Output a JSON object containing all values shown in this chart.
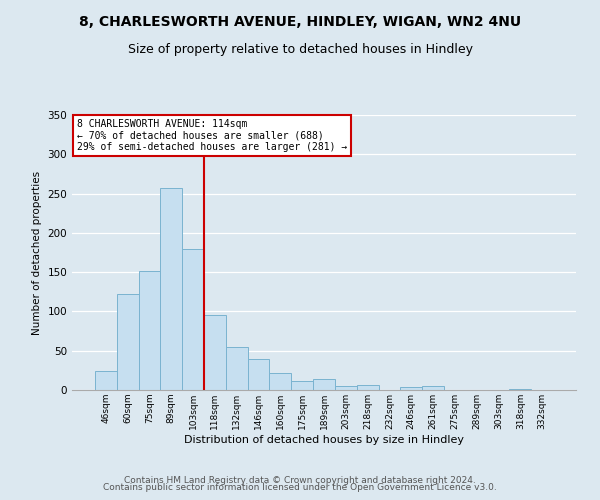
{
  "title": "8, CHARLESWORTH AVENUE, HINDLEY, WIGAN, WN2 4NU",
  "subtitle": "Size of property relative to detached houses in Hindley",
  "xlabel": "Distribution of detached houses by size in Hindley",
  "ylabel": "Number of detached properties",
  "bar_labels": [
    "46sqm",
    "60sqm",
    "75sqm",
    "89sqm",
    "103sqm",
    "118sqm",
    "132sqm",
    "146sqm",
    "160sqm",
    "175sqm",
    "189sqm",
    "203sqm",
    "218sqm",
    "232sqm",
    "246sqm",
    "261sqm",
    "275sqm",
    "289sqm",
    "303sqm",
    "318sqm",
    "332sqm"
  ],
  "bar_values": [
    24,
    122,
    152,
    257,
    180,
    95,
    55,
    40,
    22,
    12,
    14,
    5,
    6,
    0,
    4,
    5,
    0,
    0,
    0,
    1,
    0
  ],
  "bar_color": "#c6dff0",
  "bar_edge_color": "#7ab3d0",
  "vline_color": "#cc0000",
  "annotation_text": "8 CHARLESWORTH AVENUE: 114sqm\n← 70% of detached houses are smaller (688)\n29% of semi-detached houses are larger (281) →",
  "annotation_box_color": "#ffffff",
  "annotation_box_edge": "#cc0000",
  "ylim": [
    0,
    350
  ],
  "yticks": [
    0,
    50,
    100,
    150,
    200,
    250,
    300,
    350
  ],
  "footer_line1": "Contains HM Land Registry data © Crown copyright and database right 2024.",
  "footer_line2": "Contains public sector information licensed under the Open Government Licence v3.0.",
  "fig_bg_color": "#dce8f0",
  "plot_bg_color": "#dce8f0",
  "title_fontsize": 10,
  "subtitle_fontsize": 9,
  "footer_fontsize": 6.5,
  "vline_x_index": 5
}
